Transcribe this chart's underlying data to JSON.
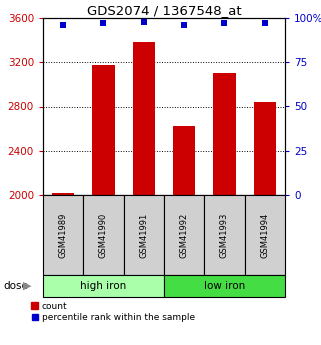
{
  "title": "GDS2074 / 1367548_at",
  "samples": [
    "GSM41989",
    "GSM41990",
    "GSM41991",
    "GSM41992",
    "GSM41993",
    "GSM41994"
  ],
  "counts": [
    2020,
    3175,
    3380,
    2620,
    3100,
    2840
  ],
  "percentiles": [
    96,
    97,
    98,
    96,
    97,
    97
  ],
  "groups": [
    {
      "label": "high iron",
      "color": "#aaffaa"
    },
    {
      "label": "low iron",
      "color": "#44dd44"
    }
  ],
  "bar_color": "#cc0000",
  "dot_color": "#0000cc",
  "ylim_left": [
    2000,
    3600
  ],
  "ylim_right": [
    0,
    100
  ],
  "yticks_left": [
    2000,
    2400,
    2800,
    3200,
    3600
  ],
  "yticks_right": [
    0,
    25,
    50,
    75,
    100
  ],
  "tick_color_left": "#cc0000",
  "tick_color_right": "#0000cc",
  "label_area_color": "#d0d0d0",
  "grid_yticks": [
    2400,
    2800,
    3200
  ]
}
